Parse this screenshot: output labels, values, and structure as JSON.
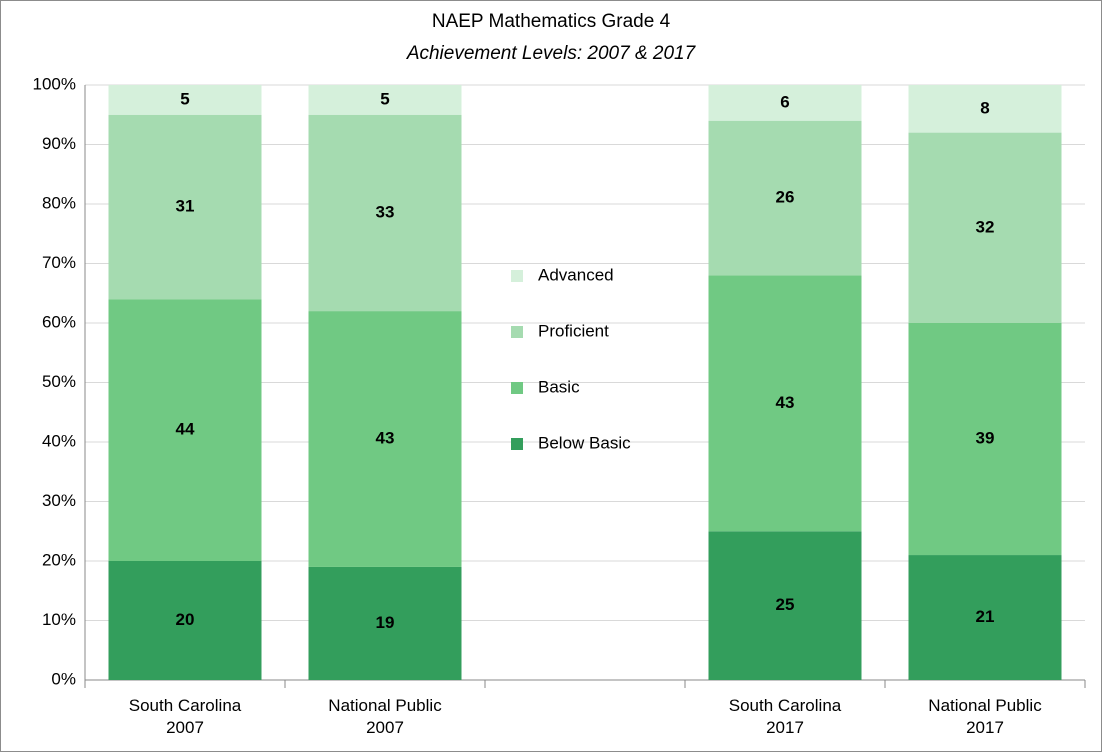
{
  "chart_data": {
    "type": "stacked_bar",
    "title": "NAEP Mathematics Grade 4",
    "subtitle": "Achievement Levels: 2007 & 2017",
    "categories": [
      "South Carolina\n2007",
      "National Public\n2007",
      null,
      "South Carolina\n2017",
      "National Public\n2017"
    ],
    "series": [
      {
        "name": "Below Basic",
        "color": "#339e5c",
        "values": [
          20,
          19,
          null,
          25,
          21
        ]
      },
      {
        "name": "Basic",
        "color": "#70c983",
        "values": [
          44,
          43,
          null,
          43,
          39
        ]
      },
      {
        "name": "Proficient",
        "color": "#a5dbb0",
        "values": [
          31,
          33,
          null,
          26,
          32
        ]
      },
      {
        "name": "Advanced",
        "color": "#d5f0db",
        "values": [
          5,
          5,
          null,
          6,
          8
        ]
      }
    ],
    "ylim": [
      0,
      100
    ],
    "yticks": [
      {
        "value": 0,
        "label": "0%"
      },
      {
        "value": 10,
        "label": "10%"
      },
      {
        "value": 20,
        "label": "20%"
      },
      {
        "value": 30,
        "label": "30%"
      },
      {
        "value": 40,
        "label": "40%"
      },
      {
        "value": 50,
        "label": "50%"
      },
      {
        "value": 60,
        "label": "60%"
      },
      {
        "value": 70,
        "label": "70%"
      },
      {
        "value": 80,
        "label": "80%"
      },
      {
        "value": 90,
        "label": "90%"
      },
      {
        "value": 100,
        "label": "100%"
      }
    ],
    "grid": true,
    "legend": "center"
  }
}
